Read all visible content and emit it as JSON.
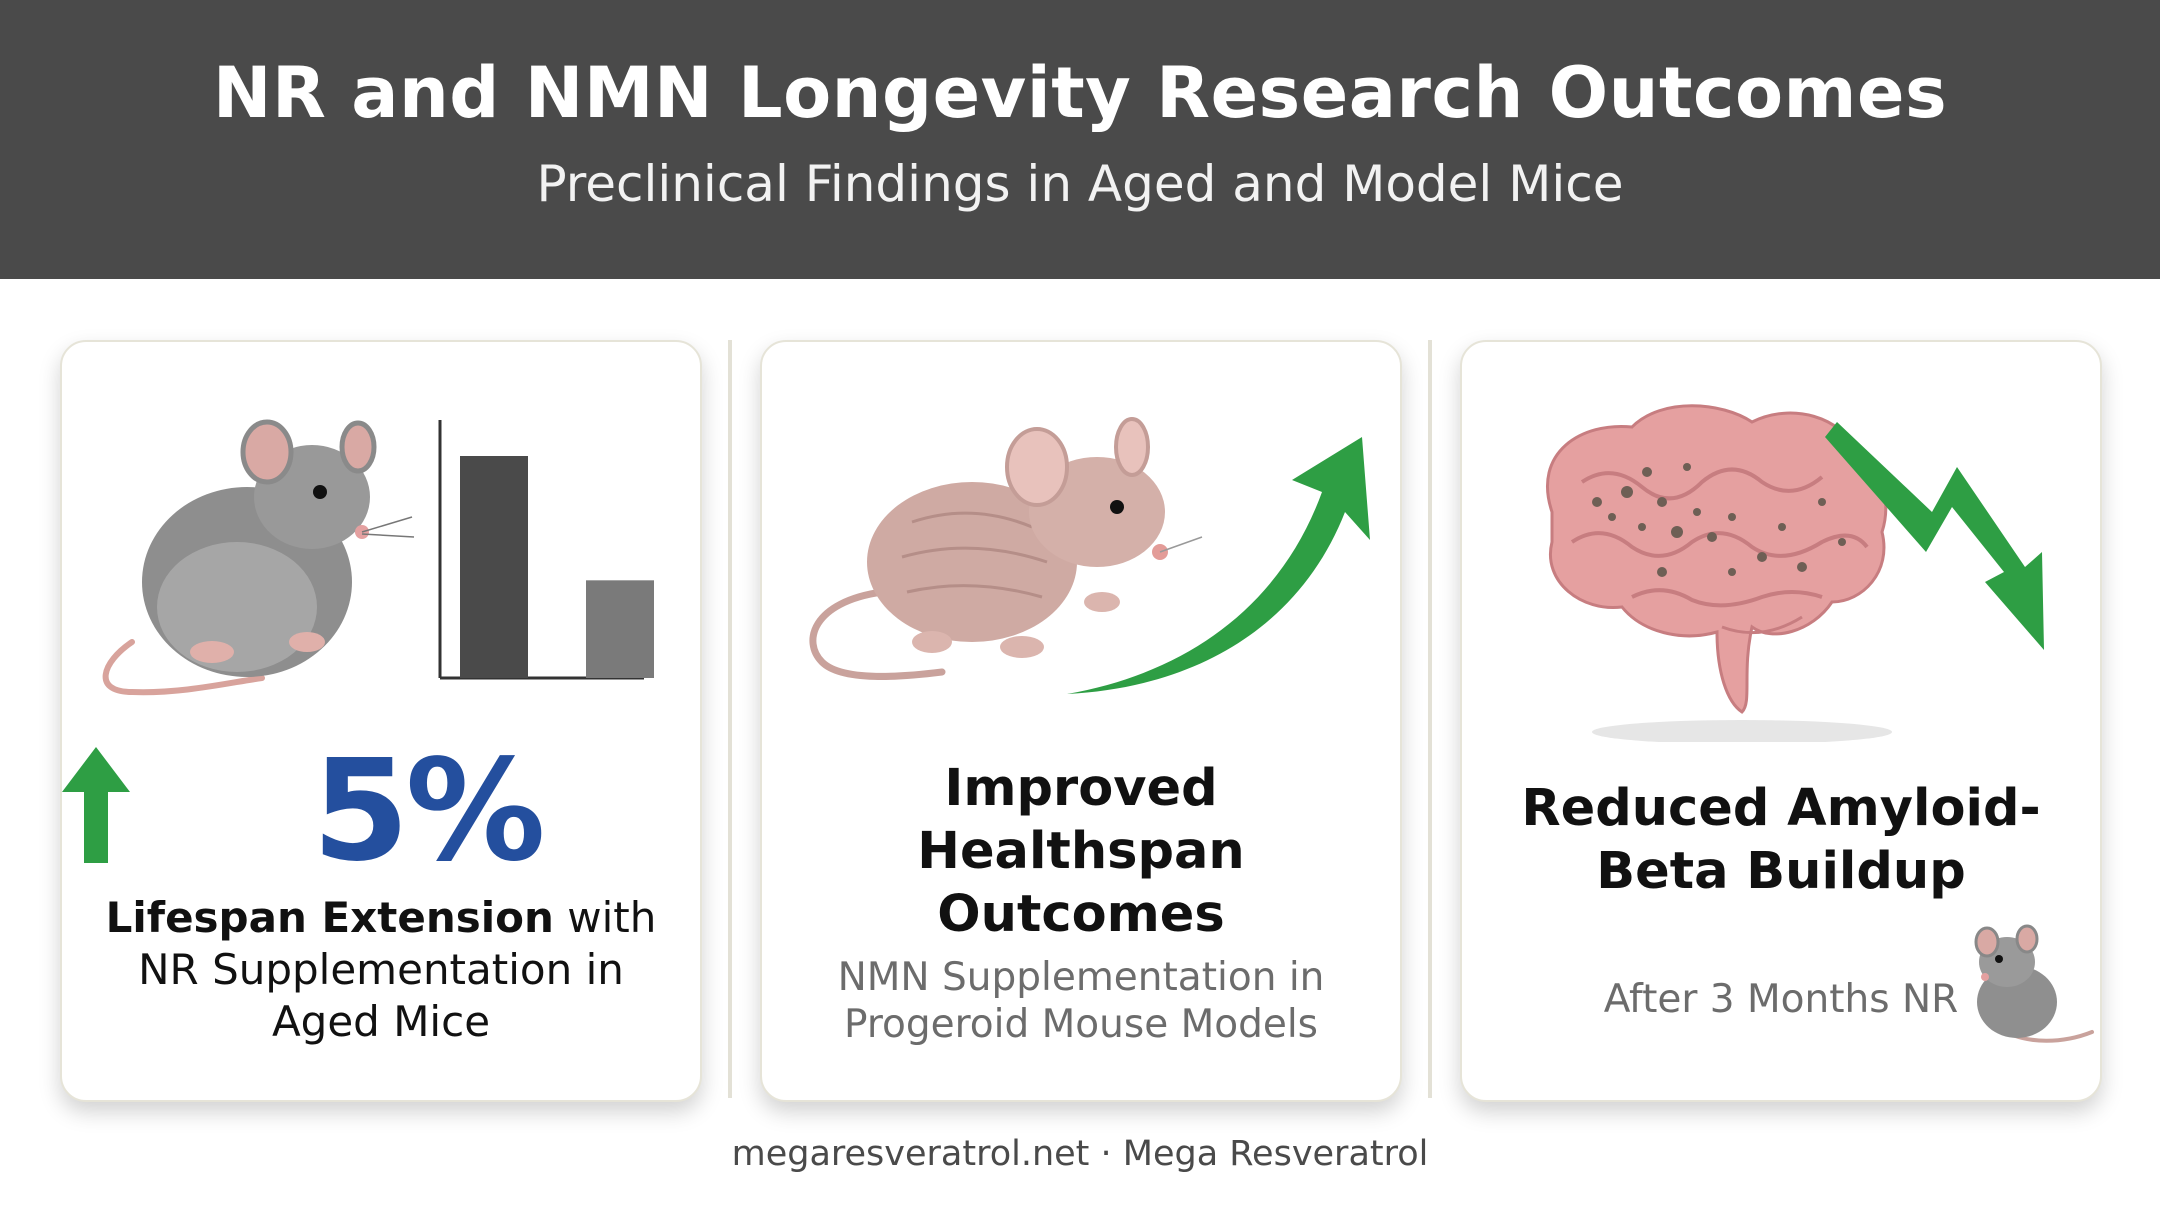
{
  "header": {
    "title": "NR and NMN Longevity Research Outcomes",
    "subtitle": "Preclinical Findings in Aged and Model Mice"
  },
  "cards": [
    {
      "stat_value": "5%",
      "stat_trend": "up",
      "text_bold": "Lifespan Extension",
      "text_rest": " with NR Supplementation in Aged Mice",
      "icons": [
        "gray-mouse-icon",
        "bar-chart-icon",
        "up-arrow-icon"
      ],
      "chart_data": {
        "type": "bar",
        "categories": [
          "",
          ""
        ],
        "values": [
          1.0,
          0.44
        ]
      }
    },
    {
      "heading": "Improved Healthspan Outcomes",
      "subtext": "NMN Supplementation in Progeroid Mouse Models",
      "icons": [
        "hairless-mouse-icon",
        "rising-trend-arrow-icon"
      ]
    },
    {
      "heading": "Reduced Amyloid-Beta Buildup",
      "subtext": "After 3 Months NR",
      "icons": [
        "brain-icon",
        "falling-trend-arrow-icon",
        "small-mouse-icon"
      ]
    }
  ],
  "footer": {
    "text": "megaresveratrol.net · Mega Resveratrol"
  },
  "colors": {
    "header_bg": "#4a4a4a",
    "stat_blue": "#244f9e",
    "arrow_green": "#2e9e44",
    "bar_dark": "#4a4a4a",
    "bar_light": "#7a7a7a",
    "card_border": "#e6e4d8"
  }
}
